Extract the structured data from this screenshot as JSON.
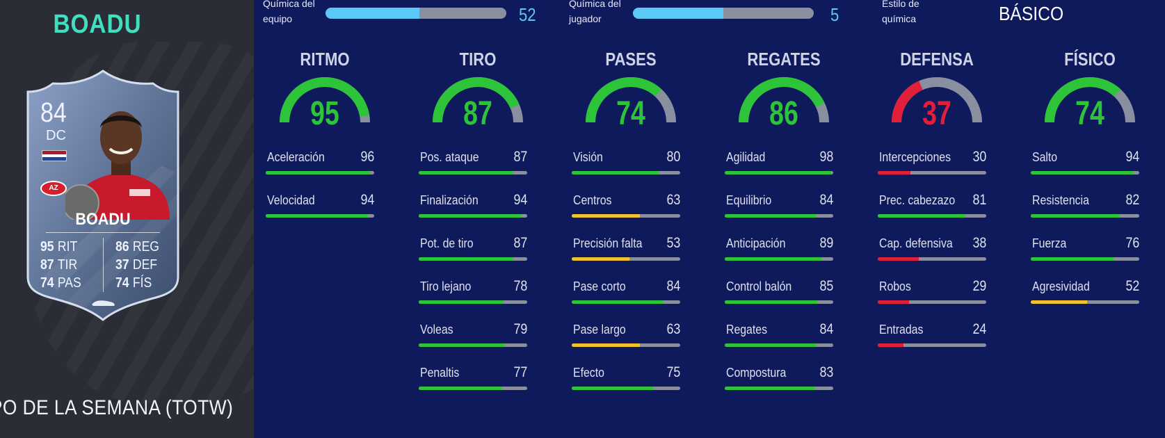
{
  "player": {
    "name_top": "BOADU",
    "card_name": "BOADU",
    "rating": "84",
    "position": "DC",
    "card_type": "IPO DE LA SEMANA (TOTW)",
    "club_badge": "AZ",
    "flag_colors": [
      "#ae1c28",
      "#ffffff",
      "#21468b"
    ],
    "card_stats_left": [
      {
        "value": "95",
        "label": "RIT"
      },
      {
        "value": "87",
        "label": "TIR"
      },
      {
        "value": "74",
        "label": "PAS"
      }
    ],
    "card_stats_right": [
      {
        "value": "86",
        "label": "REG"
      },
      {
        "value": "37",
        "label": "DEF"
      },
      {
        "value": "74",
        "label": "FÍS"
      }
    ]
  },
  "chemistry": {
    "team_label_1": "Química del",
    "team_label_2": "equipo",
    "team_value": "52",
    "team_fraction": 0.52,
    "player_label_1": "Química del",
    "player_label_2": "jugador",
    "player_value": "5",
    "player_fraction": 0.5,
    "style_label_1": "Estilo de",
    "style_label_2": "química",
    "style_value": "BÁSICO"
  },
  "colors": {
    "green": "#2ec43a",
    "yellow": "#f2c12e",
    "red": "#e0203a",
    "track": "#8a8fa0",
    "chem": "#5bc8f5"
  },
  "categories": [
    {
      "title": "RITMO",
      "value": "95",
      "color": "green",
      "attrs": [
        {
          "name": "Aceleración",
          "value": "96",
          "color": "green"
        },
        {
          "name": "Velocidad",
          "value": "94",
          "color": "green"
        }
      ]
    },
    {
      "title": "TIRO",
      "value": "87",
      "color": "green",
      "attrs": [
        {
          "name": "Pos. ataque",
          "value": "87",
          "color": "green"
        },
        {
          "name": "Finalización",
          "value": "94",
          "color": "green"
        },
        {
          "name": "Pot. de tiro",
          "value": "87",
          "color": "green"
        },
        {
          "name": "Tiro lejano",
          "value": "78",
          "color": "green"
        },
        {
          "name": "Voleas",
          "value": "79",
          "color": "green"
        },
        {
          "name": "Penaltis",
          "value": "77",
          "color": "green"
        }
      ]
    },
    {
      "title": "PASES",
      "value": "74",
      "color": "green",
      "attrs": [
        {
          "name": "Visión",
          "value": "80",
          "color": "green"
        },
        {
          "name": "Centros",
          "value": "63",
          "color": "yellow"
        },
        {
          "name": "Precisión falta",
          "value": "53",
          "color": "yellow"
        },
        {
          "name": "Pase corto",
          "value": "84",
          "color": "green"
        },
        {
          "name": "Pase largo",
          "value": "63",
          "color": "yellow"
        },
        {
          "name": "Efecto",
          "value": "75",
          "color": "green"
        }
      ]
    },
    {
      "title": "REGATES",
      "value": "86",
      "color": "green",
      "attrs": [
        {
          "name": "Agilidad",
          "value": "98",
          "color": "green"
        },
        {
          "name": "Equilibrio",
          "value": "84",
          "color": "green"
        },
        {
          "name": "Anticipación",
          "value": "89",
          "color": "green"
        },
        {
          "name": "Control balón",
          "value": "85",
          "color": "green"
        },
        {
          "name": "Regates",
          "value": "84",
          "color": "green"
        },
        {
          "name": "Compostura",
          "value": "83",
          "color": "green"
        }
      ]
    },
    {
      "title": "DEFENSA",
      "value": "37",
      "color": "red",
      "attrs": [
        {
          "name": "Intercepciones",
          "value": "30",
          "color": "red"
        },
        {
          "name": "Prec. cabezazo",
          "value": "81",
          "color": "green"
        },
        {
          "name": "Cap. defensiva",
          "value": "38",
          "color": "red"
        },
        {
          "name": "Robos",
          "value": "29",
          "color": "red"
        },
        {
          "name": "Entradas",
          "value": "24",
          "color": "red"
        }
      ]
    },
    {
      "title": "FÍSICO",
      "value": "74",
      "color": "green",
      "attrs": [
        {
          "name": "Salto",
          "value": "94",
          "color": "green"
        },
        {
          "name": "Resistencia",
          "value": "82",
          "color": "green"
        },
        {
          "name": "Fuerza",
          "value": "76",
          "color": "green"
        },
        {
          "name": "Agresividad",
          "value": "52",
          "color": "yellow"
        }
      ]
    }
  ]
}
